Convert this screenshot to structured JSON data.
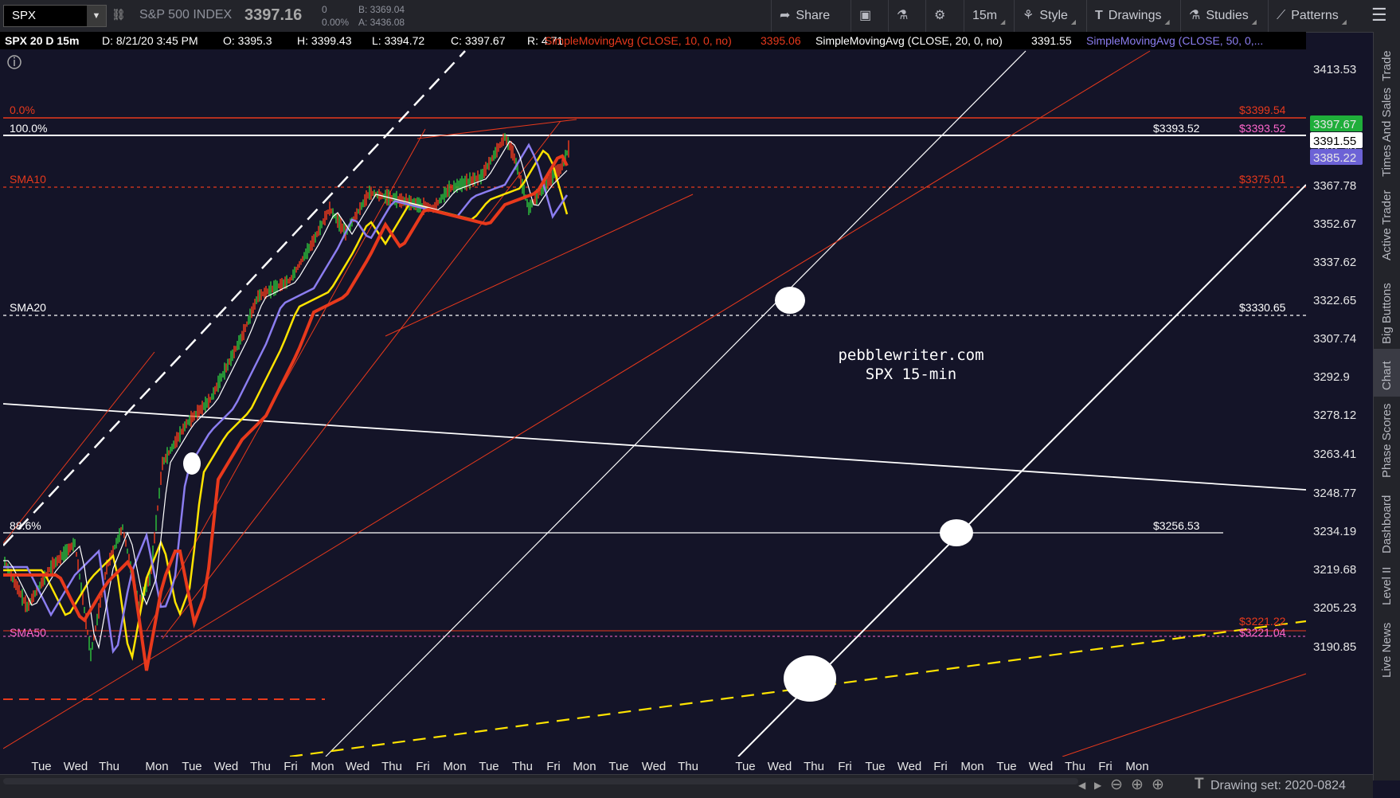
{
  "toolbar": {
    "symbol": "SPX",
    "index_name": "S&P 500 INDEX",
    "price": "3397.16",
    "change": "0",
    "change_pct": "0.00%",
    "bid": "B: 3369.04",
    "ask": "A: 3436.08",
    "share": "Share",
    "timeframe": "15m",
    "style": "Style",
    "drawings": "Drawings",
    "studies": "Studies",
    "patterns": "Patterns"
  },
  "infobar": {
    "title": "SPX 20 D 15m",
    "date": "D: 8/21/20 3:45 PM",
    "open": "O: 3395.3",
    "high": "H: 3399.43",
    "low": "L: 3394.72",
    "close": "C: 3397.67",
    "range": "R: 4.71",
    "sma10_label": "SimpleMovingAvg (CLOSE, 10, 0, no)",
    "sma10_value": "3395.06",
    "sma20_label": "SimpleMovingAvg (CLOSE, 20, 0, no)",
    "sma20_value": "3391.55",
    "sma50_label": "SimpleMovingAvg (CLOSE, 50, 0,..."
  },
  "chart": {
    "watermark_line1": "pebblewriter.com",
    "watermark_line2": "SPX 15-min",
    "price_axis": [
      "3413.53",
      "3382.96",
      "3367.78",
      "3352.67",
      "3337.62",
      "3322.65",
      "3307.74",
      "3292.9",
      "3278.12",
      "3263.41",
      "3248.77",
      "3234.19",
      "3219.68",
      "3205.23",
      "3190.85"
    ],
    "time_axis": [
      "Tue",
      "Wed",
      "Thu",
      "Mon",
      "Tue",
      "Wed",
      "Thu",
      "Fri",
      "Mon",
      "Wed",
      "Thu",
      "Fri",
      "Mon",
      "Tue",
      "Thu",
      "Fri",
      "Mon",
      "Tue",
      "Wed",
      "Thu",
      "Tue",
      "Wed",
      "Thu",
      "Fri",
      "Tue",
      "Wed",
      "Fri",
      "Mon",
      "Tue",
      "Wed",
      "Thu",
      "Fri",
      "Mon"
    ],
    "last_price": "3397.67",
    "sma20_badge": "3391.55",
    "sma50_badge": "3385.22",
    "levels": {
      "fib0_label": "0.0%",
      "fib0_value": "$3399.54",
      "fib100_label": "100.0%",
      "fib100_value": "$3393.52",
      "fib100_value_b": "$3393.52",
      "sma10_label": "SMA10",
      "sma10_value": "$3375.01",
      "sma20_label": "SMA20",
      "sma20_value": "$3330.65",
      "fib886_label": "88.6%",
      "fib886_value": "$3256.53",
      "sma50_label": "SMA50",
      "sma50_value": "$3221.04",
      "red_lo_value": "$3221.22"
    }
  },
  "sidebar": [
    "Trade",
    "Times And Sales",
    "Active Trader",
    "Big Buttons",
    "Chart",
    "Phase Scores",
    "Dashboard",
    "Level II",
    "Live News"
  ],
  "bottom": {
    "drawing_set": "Drawing set: 2020-0824"
  },
  "colors": {
    "background": "#141428",
    "sma10": "#e8391c",
    "sma20": "#ffffff",
    "sma50": "#8b7df0",
    "sma200": "#ffe400"
  }
}
